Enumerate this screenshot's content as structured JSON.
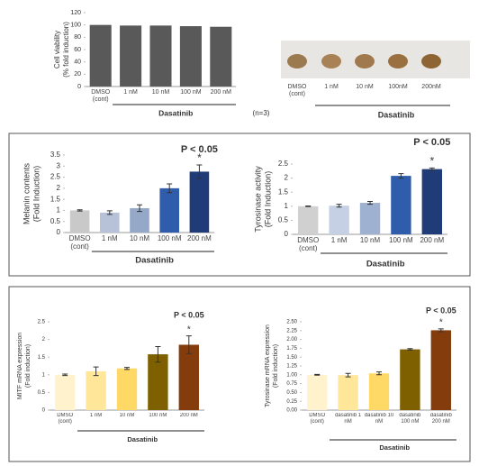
{
  "chart_data": [
    {
      "type": "bar",
      "ylabel": [
        "Cell viability",
        "(% fold induction)"
      ],
      "categories": [
        "DMSO (cont)",
        "1 nM",
        "10 nM",
        "100 nM",
        "200 nM"
      ],
      "values": [
        100,
        99,
        99,
        98,
        97
      ],
      "color": "#595959",
      "ylim": [
        0,
        120
      ],
      "yticks": [
        0,
        20,
        40,
        60,
        80,
        100,
        120
      ],
      "group_label": "Dasatinib",
      "note": "(n=3)"
    },
    {
      "type": "bar",
      "ylabel": [
        "Melanin contents",
        "(Fold Induction)"
      ],
      "categories": [
        "DMSO (cont)",
        "1 nM",
        "10 nM",
        "100 nM",
        "200 nM"
      ],
      "values": [
        1.0,
        0.9,
        1.1,
        2.0,
        2.75
      ],
      "errors": [
        0.03,
        0.08,
        0.15,
        0.2,
        0.3
      ],
      "colors": [
        "#c9c9c9",
        "#b7c2d8",
        "#95a8c8",
        "#2f5dab",
        "#1f3b78"
      ],
      "ylim": [
        0,
        3.5
      ],
      "yticks": [
        0,
        0.5,
        1,
        1.5,
        2,
        2.5,
        3,
        3.5
      ],
      "group_label": "Dasatinib",
      "annotations": [
        "P < 0.05",
        "*"
      ]
    },
    {
      "type": "bar",
      "ylabel": [
        "Tyrosinase activity",
        "(Fold Induction)"
      ],
      "categories": [
        "DMSO (cont)",
        "1 nM",
        "10 nM",
        "100 nM",
        "200 nM"
      ],
      "values": [
        1.0,
        1.02,
        1.12,
        2.08,
        2.32
      ],
      "errors": [
        0.01,
        0.05,
        0.05,
        0.08,
        0.04
      ],
      "colors": [
        "#d0d0d0",
        "#c5d0e4",
        "#9fb1d0",
        "#2f5dab",
        "#1f3b78"
      ],
      "ylim": [
        0,
        2.5
      ],
      "yticks": [
        0,
        0.5,
        1,
        1.5,
        2,
        2.5
      ],
      "group_label": "Dasatinib",
      "annotations": [
        "P < 0.05",
        "*"
      ]
    },
    {
      "type": "bar",
      "ylabel": [
        "MITF mRNA expression",
        "(Fold induction)"
      ],
      "categories": [
        "DMSO (cont)",
        "1 nM",
        "10 nM",
        "100 nM",
        "200 nM"
      ],
      "values": [
        1.0,
        1.1,
        1.18,
        1.58,
        1.85
      ],
      "errors": [
        0.02,
        0.12,
        0.03,
        0.22,
        0.25
      ],
      "colors": [
        "#fff2cc",
        "#ffe699",
        "#ffd966",
        "#7f6000",
        "#843c0c"
      ],
      "ylim": [
        0,
        2.5
      ],
      "yticks": [
        0,
        0.5,
        1,
        1.5,
        2,
        2.5
      ],
      "group_label": "Dasatinib",
      "annotations": [
        "P < 0.05",
        "*"
      ]
    },
    {
      "type": "bar",
      "ylabel": [
        "Tyrosinase mRNA expression",
        "(Fold induction)"
      ],
      "categories": [
        "DMSO (cont)",
        "dasatinib 1 nM",
        "dasatinib 10 nM",
        "dasatinib 100 nM",
        "dasatinib 200 nM"
      ],
      "values": [
        1.0,
        0.99,
        1.04,
        1.72,
        2.26
      ],
      "errors": [
        0.01,
        0.05,
        0.04,
        0.02,
        0.04
      ],
      "colors": [
        "#fff2cc",
        "#ffe699",
        "#ffd966",
        "#7f6000",
        "#843c0c"
      ],
      "ylim": [
        0,
        2.5
      ],
      "yticks": [
        {
          "value": 0,
          "label": "0.00"
        },
        {
          "value": 0.25,
          "label": "0.25"
        },
        {
          "value": 0.5,
          "label": "0.50"
        },
        {
          "value": 0.75,
          "label": "0.75"
        },
        {
          "value": 1,
          "label": "1.00"
        },
        {
          "value": 1.25,
          "label": "1.25"
        },
        {
          "value": 1.5,
          "label": "1.50"
        },
        {
          "value": 1.75,
          "label": "1.75"
        },
        {
          "value": 2,
          "label": "2.00"
        },
        {
          "value": 2.25,
          "label": "2.25"
        },
        {
          "value": 2.5,
          "label": "2.50"
        }
      ],
      "group_label": "Dasatinib",
      "annotations": [
        "P < 0.05",
        "*"
      ]
    }
  ],
  "photo_panel": {
    "labels": [
      "DMSO (cont)",
      "1 nM",
      "10 nM",
      "100nM",
      "200nM"
    ],
    "group_label": "Dasatinib"
  }
}
